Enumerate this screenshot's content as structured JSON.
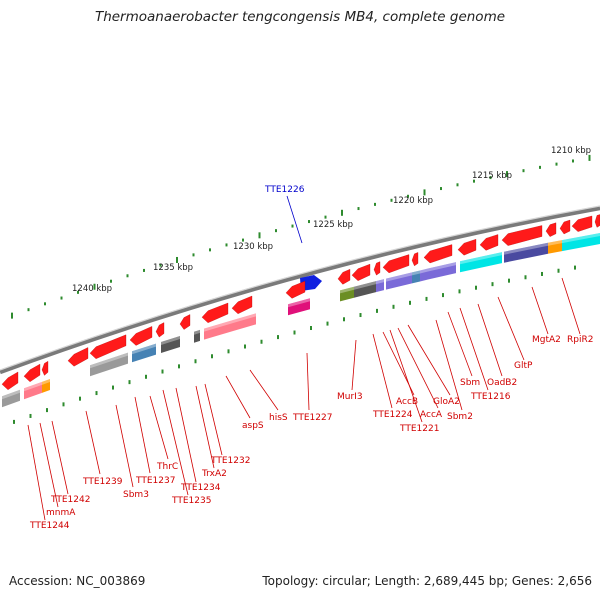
{
  "title": "Thermoanaerobacter tengcongensis MB4, complete genome",
  "footer": {
    "accession": "Accession: NC_003869",
    "topology": "Topology: circular; Length: 2,689,445 bp; Genes: 2,656"
  },
  "scale_labels": [
    "1210 kbp",
    "1215 kbp",
    "1220 kbp",
    "1225 kbp",
    "1230 kbp",
    "1235 kbp",
    "1240 kbp"
  ],
  "forward_gene_label": "TTE1226",
  "gene_labels": [
    "TTE1244",
    "mnmA",
    "TTE1242",
    "TTE1239",
    "Sbm3",
    "TTE1237",
    "ThrC",
    "TTE1235",
    "TTE1234",
    "TrxA2",
    "TTE1232",
    "aspS",
    "hisS",
    "TTE1227",
    "MurI3",
    "TTE1224",
    "AccB",
    "TTE1221",
    "AccA",
    "GloA2",
    "Sbm2",
    "Sbm",
    "TTE1216",
    "OadB2",
    "GltP",
    "MgtA2",
    "RpiR2"
  ],
  "colors": {
    "backbone": "#7a7a7a",
    "tick": "#2e8b2e",
    "reverse_gene": "#ff1a1a",
    "forward_gene": "#1020e0",
    "label_reverse": "#d00000",
    "label_forward": "#0000cc",
    "cog_cyan": "#00e5e5",
    "cog_purple": "#7a6ad8",
    "cog_slate": "#4a4aa0",
    "cog_orange": "#ff9900",
    "cog_pink": "#ff7a8a",
    "cog_magenta": "#e0107a",
    "cog_olive": "#6b8e23",
    "cog_gray": "#9a9a9a",
    "cog_steel": "#4682b4",
    "cog_dark": "#555555"
  }
}
